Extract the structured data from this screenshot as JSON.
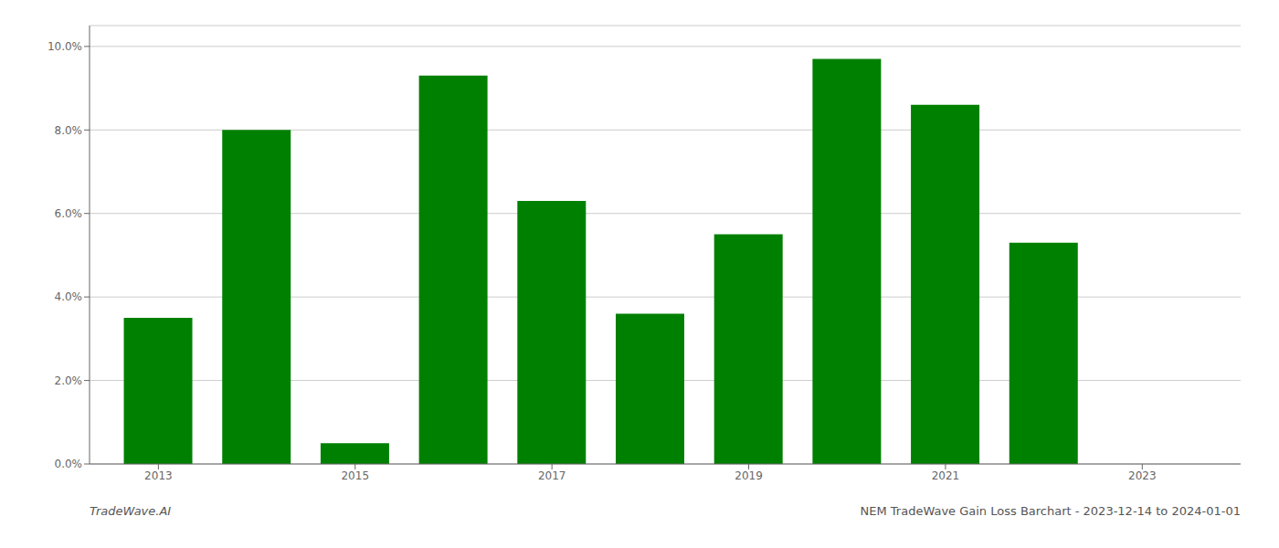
{
  "chart_data": {
    "type": "bar",
    "x": [
      2013,
      2014,
      2015,
      2016,
      2017,
      2018,
      2019,
      2020,
      2021,
      2022,
      2023
    ],
    "values": [
      0.035,
      0.08,
      0.005,
      0.093,
      0.063,
      0.036,
      0.055,
      0.097,
      0.086,
      0.053,
      0.0
    ],
    "color": "#008000",
    "xlim": [
      2012.3,
      2024.0
    ],
    "xticks": [
      2013,
      2015,
      2017,
      2019,
      2021,
      2023
    ],
    "ylim": [
      0.0,
      0.105
    ],
    "yticks": [
      {
        "value": 0.0,
        "label": "0.0%"
      },
      {
        "value": 0.02,
        "label": "2.0%"
      },
      {
        "value": 0.04,
        "label": "4.0%"
      },
      {
        "value": 0.06,
        "label": "6.0%"
      },
      {
        "value": 0.08,
        "label": "8.0%"
      },
      {
        "value": 0.1,
        "label": "10.0%"
      }
    ],
    "grid": true,
    "annotations": [
      "TradeWave.AI",
      "NEM TradeWave Gain Loss Barchart - 2023-12-14 to 2024-01-01"
    ]
  }
}
